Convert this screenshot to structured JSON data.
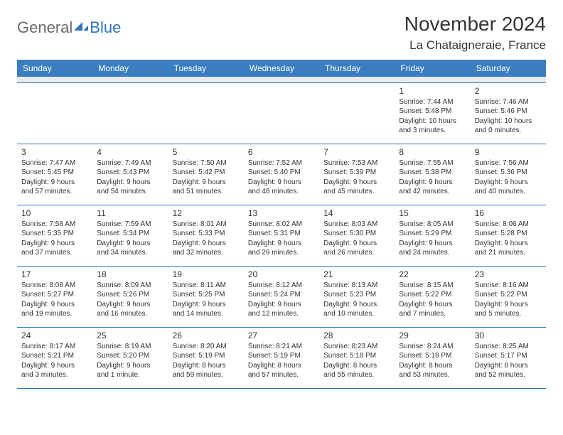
{
  "brand": {
    "general": "General",
    "blue": "Blue"
  },
  "title": "November 2024",
  "location": "La Chataigneraie, France",
  "colors": {
    "header_bg": "#3a7ebf",
    "header_text": "#ffffff",
    "rule": "#2d73b9",
    "spacer_bg": "#ebebeb",
    "body_text": "#333333",
    "logo_gray": "#6a6a6a",
    "logo_blue": "#2d73b9"
  },
  "layout": {
    "cols": 7,
    "rows": 5,
    "cell_fontsize": 10,
    "daynum_fontsize": 12,
    "header_fontsize": 12
  },
  "weekdays": [
    "Sunday",
    "Monday",
    "Tuesday",
    "Wednesday",
    "Thursday",
    "Friday",
    "Saturday"
  ],
  "weeks": [
    [
      null,
      null,
      null,
      null,
      null,
      {
        "n": "1",
        "sr": "Sunrise: 7:44 AM",
        "ss": "Sunset: 5:48 PM",
        "d1": "Daylight: 10 hours",
        "d2": "and 3 minutes."
      },
      {
        "n": "2",
        "sr": "Sunrise: 7:46 AM",
        "ss": "Sunset: 5:46 PM",
        "d1": "Daylight: 10 hours",
        "d2": "and 0 minutes."
      }
    ],
    [
      {
        "n": "3",
        "sr": "Sunrise: 7:47 AM",
        "ss": "Sunset: 5:45 PM",
        "d1": "Daylight: 9 hours",
        "d2": "and 57 minutes."
      },
      {
        "n": "4",
        "sr": "Sunrise: 7:49 AM",
        "ss": "Sunset: 5:43 PM",
        "d1": "Daylight: 9 hours",
        "d2": "and 54 minutes."
      },
      {
        "n": "5",
        "sr": "Sunrise: 7:50 AM",
        "ss": "Sunset: 5:42 PM",
        "d1": "Daylight: 9 hours",
        "d2": "and 51 minutes."
      },
      {
        "n": "6",
        "sr": "Sunrise: 7:52 AM",
        "ss": "Sunset: 5:40 PM",
        "d1": "Daylight: 9 hours",
        "d2": "and 48 minutes."
      },
      {
        "n": "7",
        "sr": "Sunrise: 7:53 AM",
        "ss": "Sunset: 5:39 PM",
        "d1": "Daylight: 9 hours",
        "d2": "and 45 minutes."
      },
      {
        "n": "8",
        "sr": "Sunrise: 7:55 AM",
        "ss": "Sunset: 5:38 PM",
        "d1": "Daylight: 9 hours",
        "d2": "and 42 minutes."
      },
      {
        "n": "9",
        "sr": "Sunrise: 7:56 AM",
        "ss": "Sunset: 5:36 PM",
        "d1": "Daylight: 9 hours",
        "d2": "and 40 minutes."
      }
    ],
    [
      {
        "n": "10",
        "sr": "Sunrise: 7:58 AM",
        "ss": "Sunset: 5:35 PM",
        "d1": "Daylight: 9 hours",
        "d2": "and 37 minutes."
      },
      {
        "n": "11",
        "sr": "Sunrise: 7:59 AM",
        "ss": "Sunset: 5:34 PM",
        "d1": "Daylight: 9 hours",
        "d2": "and 34 minutes."
      },
      {
        "n": "12",
        "sr": "Sunrise: 8:01 AM",
        "ss": "Sunset: 5:33 PM",
        "d1": "Daylight: 9 hours",
        "d2": "and 32 minutes."
      },
      {
        "n": "13",
        "sr": "Sunrise: 8:02 AM",
        "ss": "Sunset: 5:31 PM",
        "d1": "Daylight: 9 hours",
        "d2": "and 29 minutes."
      },
      {
        "n": "14",
        "sr": "Sunrise: 8:03 AM",
        "ss": "Sunset: 5:30 PM",
        "d1": "Daylight: 9 hours",
        "d2": "and 26 minutes."
      },
      {
        "n": "15",
        "sr": "Sunrise: 8:05 AM",
        "ss": "Sunset: 5:29 PM",
        "d1": "Daylight: 9 hours",
        "d2": "and 24 minutes."
      },
      {
        "n": "16",
        "sr": "Sunrise: 8:06 AM",
        "ss": "Sunset: 5:28 PM",
        "d1": "Daylight: 9 hours",
        "d2": "and 21 minutes."
      }
    ],
    [
      {
        "n": "17",
        "sr": "Sunrise: 8:08 AM",
        "ss": "Sunset: 5:27 PM",
        "d1": "Daylight: 9 hours",
        "d2": "and 19 minutes."
      },
      {
        "n": "18",
        "sr": "Sunrise: 8:09 AM",
        "ss": "Sunset: 5:26 PM",
        "d1": "Daylight: 9 hours",
        "d2": "and 16 minutes."
      },
      {
        "n": "19",
        "sr": "Sunrise: 8:11 AM",
        "ss": "Sunset: 5:25 PM",
        "d1": "Daylight: 9 hours",
        "d2": "and 14 minutes."
      },
      {
        "n": "20",
        "sr": "Sunrise: 8:12 AM",
        "ss": "Sunset: 5:24 PM",
        "d1": "Daylight: 9 hours",
        "d2": "and 12 minutes."
      },
      {
        "n": "21",
        "sr": "Sunrise: 8:13 AM",
        "ss": "Sunset: 5:23 PM",
        "d1": "Daylight: 9 hours",
        "d2": "and 10 minutes."
      },
      {
        "n": "22",
        "sr": "Sunrise: 8:15 AM",
        "ss": "Sunset: 5:22 PM",
        "d1": "Daylight: 9 hours",
        "d2": "and 7 minutes."
      },
      {
        "n": "23",
        "sr": "Sunrise: 8:16 AM",
        "ss": "Sunset: 5:22 PM",
        "d1": "Daylight: 9 hours",
        "d2": "and 5 minutes."
      }
    ],
    [
      {
        "n": "24",
        "sr": "Sunrise: 8:17 AM",
        "ss": "Sunset: 5:21 PM",
        "d1": "Daylight: 9 hours",
        "d2": "and 3 minutes."
      },
      {
        "n": "25",
        "sr": "Sunrise: 8:19 AM",
        "ss": "Sunset: 5:20 PM",
        "d1": "Daylight: 9 hours",
        "d2": "and 1 minute."
      },
      {
        "n": "26",
        "sr": "Sunrise: 8:20 AM",
        "ss": "Sunset: 5:19 PM",
        "d1": "Daylight: 8 hours",
        "d2": "and 59 minutes."
      },
      {
        "n": "27",
        "sr": "Sunrise: 8:21 AM",
        "ss": "Sunset: 5:19 PM",
        "d1": "Daylight: 8 hours",
        "d2": "and 57 minutes."
      },
      {
        "n": "28",
        "sr": "Sunrise: 8:23 AM",
        "ss": "Sunset: 5:18 PM",
        "d1": "Daylight: 8 hours",
        "d2": "and 55 minutes."
      },
      {
        "n": "29",
        "sr": "Sunrise: 8:24 AM",
        "ss": "Sunset: 5:18 PM",
        "d1": "Daylight: 8 hours",
        "d2": "and 53 minutes."
      },
      {
        "n": "30",
        "sr": "Sunrise: 8:25 AM",
        "ss": "Sunset: 5:17 PM",
        "d1": "Daylight: 8 hours",
        "d2": "and 52 minutes."
      }
    ]
  ]
}
